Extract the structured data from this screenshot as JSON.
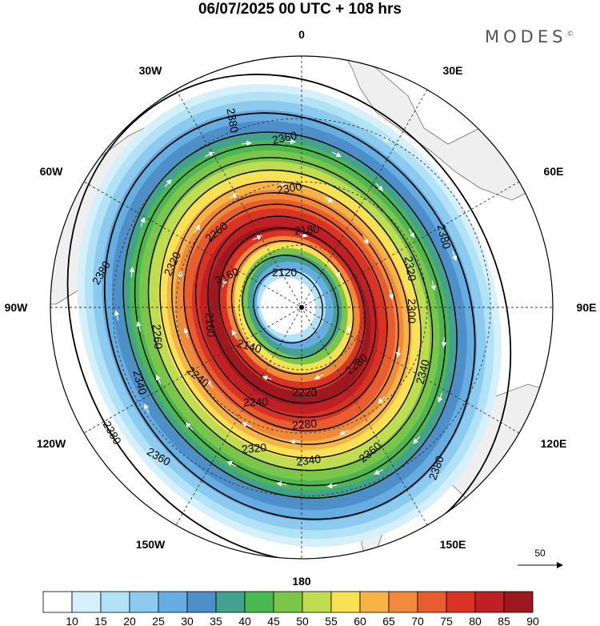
{
  "title": "06/07/2025  00 UTC  + 108 hrs",
  "brand": "MODES",
  "brand_mark": "©",
  "longitude_labels": [
    "0",
    "30E",
    "60E",
    "90E",
    "120E",
    "150E",
    "180",
    "150W",
    "120W",
    "90W",
    "60W",
    "30W"
  ],
  "contour_labels": {
    "outer": [
      "2380",
      "2380",
      "2380",
      "2380",
      "2380"
    ],
    "ring_2360": [
      "2360",
      "2360",
      "2360"
    ],
    "ring_2340": [
      "2340",
      "2340",
      "2340"
    ],
    "ring_2320": [
      "2320",
      "2320",
      "2320"
    ],
    "ring_2300": [
      "2300",
      "2300"
    ],
    "ring_2280": [
      "2280",
      "2280"
    ],
    "ring_2260": [
      "2260",
      "2260"
    ],
    "ring_2240": [
      "2240",
      "2240"
    ],
    "ring_2220": [
      "2220"
    ],
    "ring_2180": [
      "2180"
    ],
    "ring_2160": [
      "2160",
      "2160"
    ],
    "ring_2140": [
      "2140"
    ],
    "ring_2120": [
      "2120"
    ]
  },
  "colorbar": {
    "ticks": [
      "10",
      "15",
      "20",
      "25",
      "30",
      "35",
      "40",
      "45",
      "50",
      "55",
      "60",
      "65",
      "70",
      "75",
      "80",
      "85",
      "90"
    ],
    "colors": [
      "#ffffff",
      "#d5f0fb",
      "#b2e2f6",
      "#8ccbef",
      "#66aee2",
      "#4e8fca",
      "#44a18f",
      "#4cb852",
      "#7bc64a",
      "#c0dc50",
      "#f9e154",
      "#f5b445",
      "#f08a3a",
      "#e85d2e",
      "#d93324",
      "#c01f23",
      "#9e1820"
    ]
  },
  "reference_vector": {
    "label": "50"
  },
  "map_colors": {
    "land": "#efefef",
    "coast": "#6c6c6c",
    "grid": "#333333",
    "contour": "#000000",
    "arrow": "#ffffff"
  }
}
